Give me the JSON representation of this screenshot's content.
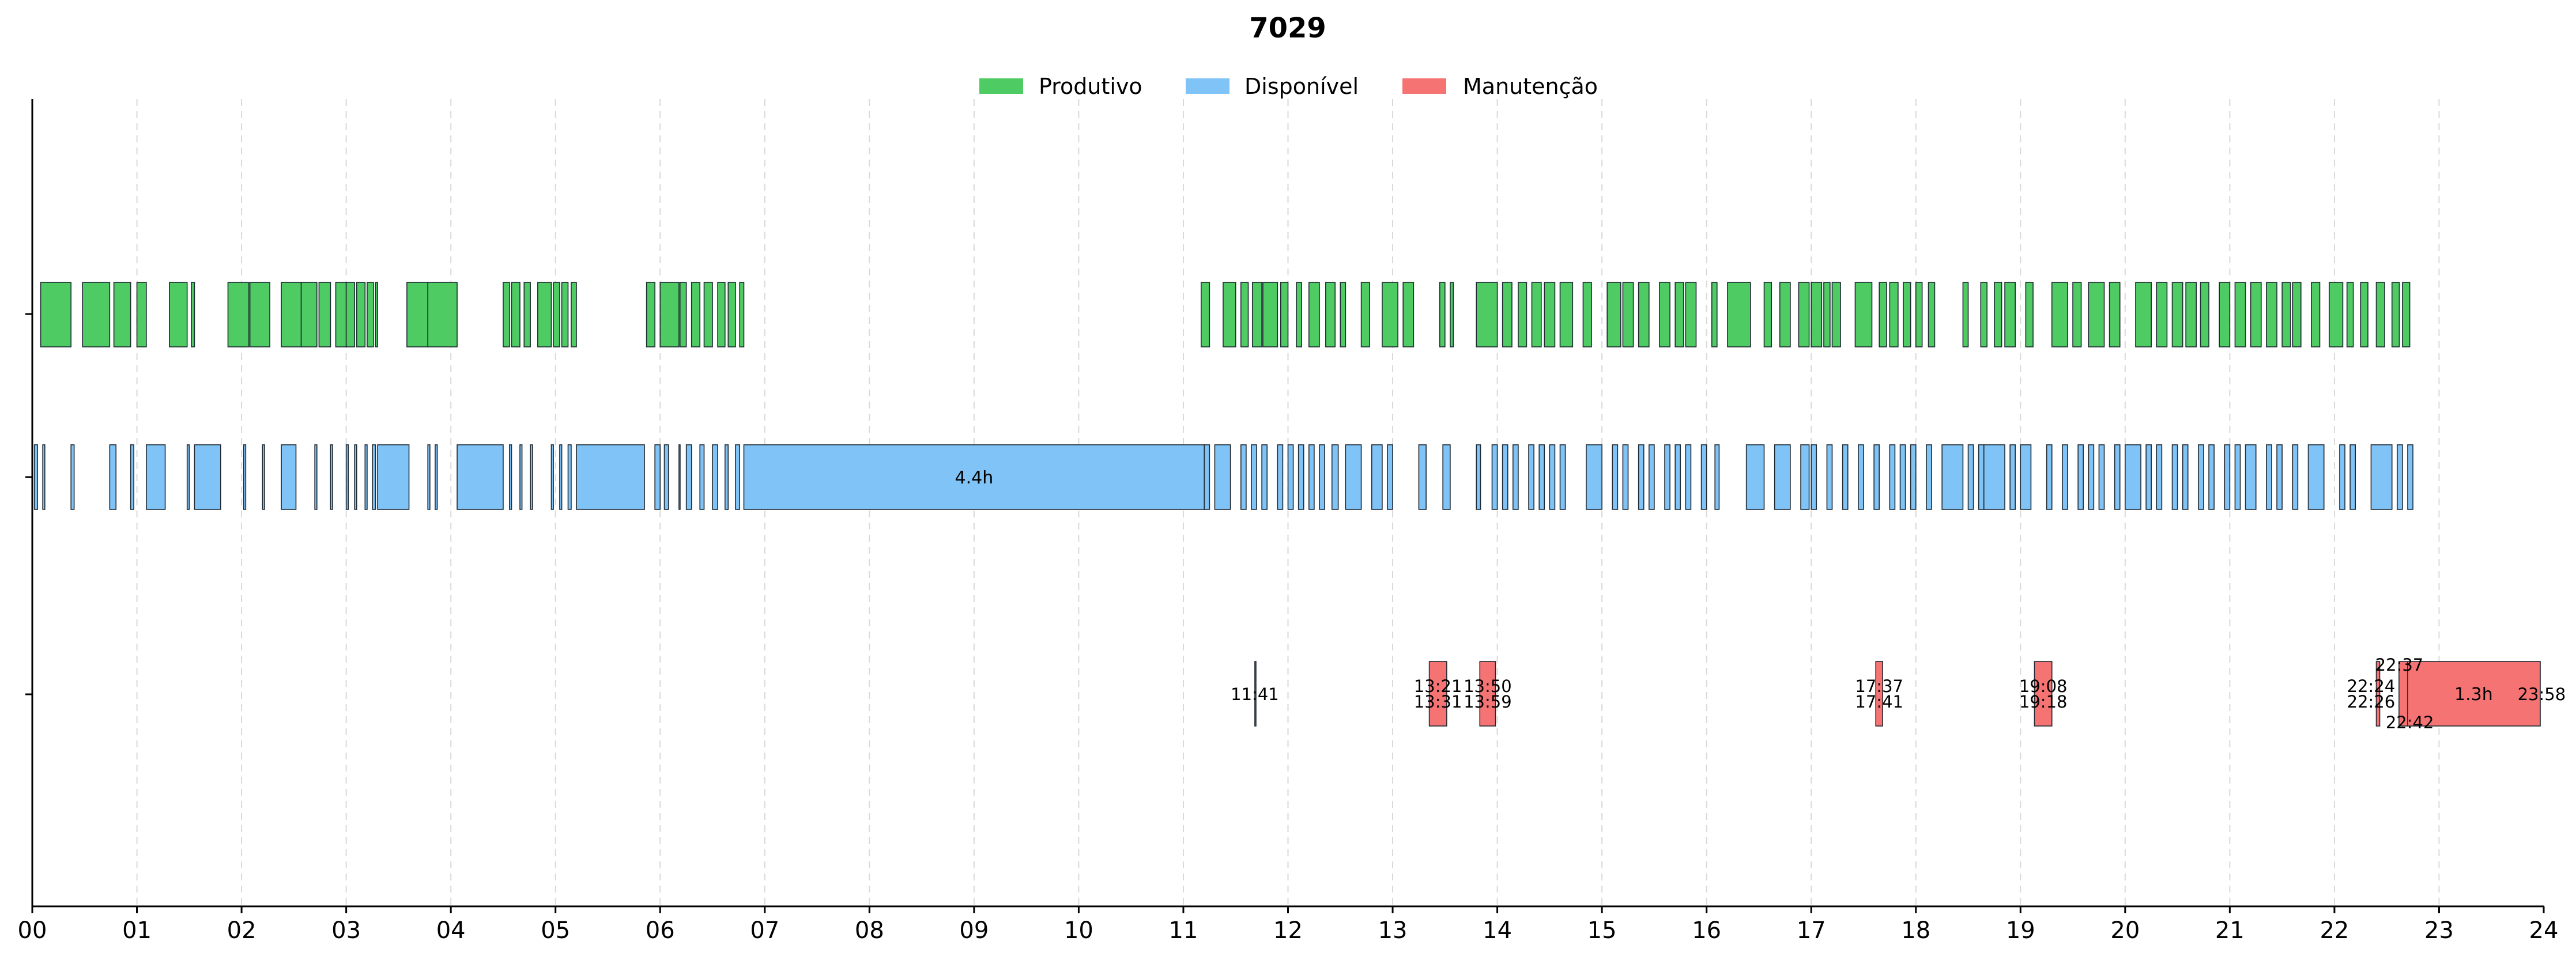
{
  "chart_data": {
    "type": "timeline",
    "title": "7029",
    "xlim": [
      0,
      24
    ],
    "x_tick_labels": [
      "00",
      "01",
      "02",
      "03",
      "04",
      "05",
      "06",
      "07",
      "08",
      "09",
      "10",
      "11",
      "12",
      "13",
      "14",
      "15",
      "16",
      "17",
      "18",
      "19",
      "20",
      "21",
      "22",
      "23",
      "24"
    ],
    "grid": "vertical dashed",
    "legend": {
      "placement": "top-center",
      "entries": [
        {
          "label": "Produtivo",
          "color": "#4ecb63"
        },
        {
          "label": "Disponível",
          "color": "#7fc3f7"
        },
        {
          "label": "Manutenção",
          "color": "#f57373"
        }
      ]
    },
    "series": [
      {
        "name": "Produtivo",
        "color": "#4ecb63",
        "intervals": [
          [
            0.08,
            0.37
          ],
          [
            0.48,
            0.74
          ],
          [
            0.78,
            0.94
          ],
          [
            1.0,
            1.09
          ],
          [
            1.31,
            1.48
          ],
          [
            1.52,
            1.55
          ],
          [
            1.87,
            2.07
          ],
          [
            2.08,
            2.27
          ],
          [
            2.38,
            2.57
          ],
          [
            2.57,
            2.72
          ],
          [
            2.74,
            2.85
          ],
          [
            2.9,
            3.0
          ],
          [
            3.0,
            3.08
          ],
          [
            3.1,
            3.18
          ],
          [
            3.2,
            3.26
          ],
          [
            3.28,
            3.3
          ],
          [
            3.58,
            3.78
          ],
          [
            3.78,
            4.06
          ],
          [
            4.5,
            4.56
          ],
          [
            4.58,
            4.66
          ],
          [
            4.7,
            4.76
          ],
          [
            4.83,
            4.96
          ],
          [
            4.98,
            5.04
          ],
          [
            5.06,
            5.12
          ],
          [
            5.15,
            5.2
          ],
          [
            5.87,
            5.95
          ],
          [
            6.0,
            6.18
          ],
          [
            6.19,
            6.25
          ],
          [
            6.3,
            6.38
          ],
          [
            6.42,
            6.5
          ],
          [
            6.55,
            6.62
          ],
          [
            6.65,
            6.72
          ],
          [
            6.76,
            6.8
          ],
          [
            11.17,
            11.25
          ],
          [
            11.38,
            11.5
          ],
          [
            11.55,
            11.62
          ],
          [
            11.66,
            11.75
          ],
          [
            11.76,
            11.9
          ],
          [
            11.93,
            12.0
          ],
          [
            12.08,
            12.13
          ],
          [
            12.2,
            12.3
          ],
          [
            12.36,
            12.45
          ],
          [
            12.5,
            12.55
          ],
          [
            12.7,
            12.78
          ],
          [
            12.9,
            13.05
          ],
          [
            13.1,
            13.2
          ],
          [
            13.45,
            13.5
          ],
          [
            13.55,
            13.58
          ],
          [
            13.8,
            14.0
          ],
          [
            14.05,
            14.14
          ],
          [
            14.2,
            14.28
          ],
          [
            14.33,
            14.42
          ],
          [
            14.45,
            14.55
          ],
          [
            14.6,
            14.72
          ],
          [
            14.82,
            14.9
          ],
          [
            15.05,
            15.18
          ],
          [
            15.2,
            15.3
          ],
          [
            15.35,
            15.45
          ],
          [
            15.55,
            15.65
          ],
          [
            15.7,
            15.78
          ],
          [
            15.8,
            15.9
          ],
          [
            16.05,
            16.1
          ],
          [
            16.2,
            16.42
          ],
          [
            16.55,
            16.62
          ],
          [
            16.7,
            16.8
          ],
          [
            16.88,
            16.98
          ],
          [
            17.0,
            17.1
          ],
          [
            17.12,
            17.18
          ],
          [
            17.2,
            17.28
          ],
          [
            17.42,
            17.58
          ],
          [
            17.65,
            17.72
          ],
          [
            17.75,
            17.83
          ],
          [
            17.88,
            17.95
          ],
          [
            18.0,
            18.06
          ],
          [
            18.12,
            18.18
          ],
          [
            18.45,
            18.5
          ],
          [
            18.62,
            18.68
          ],
          [
            18.75,
            18.82
          ],
          [
            18.85,
            18.95
          ],
          [
            19.05,
            19.12
          ],
          [
            19.3,
            19.45
          ],
          [
            19.5,
            19.58
          ],
          [
            19.65,
            19.8
          ],
          [
            19.85,
            19.95
          ],
          [
            20.1,
            20.25
          ],
          [
            20.3,
            20.4
          ],
          [
            20.45,
            20.55
          ],
          [
            20.58,
            20.68
          ],
          [
            20.72,
            20.8
          ],
          [
            20.9,
            21.0
          ],
          [
            21.05,
            21.15
          ],
          [
            21.2,
            21.3
          ],
          [
            21.35,
            21.45
          ],
          [
            21.5,
            21.58
          ],
          [
            21.6,
            21.68
          ],
          [
            21.78,
            21.86
          ],
          [
            21.95,
            22.08
          ],
          [
            22.12,
            22.18
          ],
          [
            22.25,
            22.32
          ],
          [
            22.4,
            22.48
          ],
          [
            22.55,
            22.62
          ],
          [
            22.65,
            22.72
          ]
        ]
      },
      {
        "name": "Disponível",
        "color": "#7fc3f7",
        "intervals": [
          [
            0.02,
            0.05
          ],
          [
            0.1,
            0.12
          ],
          [
            0.37,
            0.4
          ],
          [
            0.74,
            0.8
          ],
          [
            0.94,
            0.97
          ],
          [
            1.09,
            1.27
          ],
          [
            1.48,
            1.5
          ],
          [
            1.55,
            1.8
          ],
          [
            2.02,
            2.04
          ],
          [
            2.2,
            2.22
          ],
          [
            2.38,
            2.52
          ],
          [
            2.7,
            2.72
          ],
          [
            2.85,
            2.87
          ],
          [
            3.0,
            3.02
          ],
          [
            3.08,
            3.1
          ],
          [
            3.18,
            3.2
          ],
          [
            3.25,
            3.28
          ],
          [
            3.3,
            3.6
          ],
          [
            3.78,
            3.8
          ],
          [
            3.85,
            3.87
          ],
          [
            4.06,
            4.5
          ],
          [
            4.56,
            4.58
          ],
          [
            4.66,
            4.68
          ],
          [
            4.76,
            4.78
          ],
          [
            4.96,
            4.98
          ],
          [
            5.04,
            5.06
          ],
          [
            5.12,
            5.15
          ],
          [
            5.2,
            5.85
          ],
          [
            5.95,
            6.0
          ],
          [
            6.04,
            6.08
          ],
          [
            6.18,
            6.19
          ],
          [
            6.25,
            6.3
          ],
          [
            6.38,
            6.42
          ],
          [
            6.5,
            6.55
          ],
          [
            6.62,
            6.65
          ],
          [
            6.72,
            6.76
          ],
          [
            6.8,
            11.2
          ],
          [
            11.2,
            11.25
          ],
          [
            11.3,
            11.45
          ],
          [
            11.55,
            11.6
          ],
          [
            11.65,
            11.7
          ],
          [
            11.75,
            11.8
          ],
          [
            11.9,
            11.95
          ],
          [
            12.0,
            12.05
          ],
          [
            12.1,
            12.15
          ],
          [
            12.2,
            12.25
          ],
          [
            12.3,
            12.35
          ],
          [
            12.42,
            12.48
          ],
          [
            12.55,
            12.7
          ],
          [
            12.8,
            12.9
          ],
          [
            12.95,
            13.0
          ],
          [
            13.25,
            13.32
          ],
          [
            13.48,
            13.55
          ],
          [
            13.8,
            13.84
          ],
          [
            13.95,
            14.0
          ],
          [
            14.05,
            14.1
          ],
          [
            14.15,
            14.2
          ],
          [
            14.3,
            14.35
          ],
          [
            14.4,
            14.45
          ],
          [
            14.5,
            14.55
          ],
          [
            14.6,
            14.65
          ],
          [
            14.85,
            15.0
          ],
          [
            15.1,
            15.15
          ],
          [
            15.2,
            15.25
          ],
          [
            15.35,
            15.4
          ],
          [
            15.45,
            15.5
          ],
          [
            15.6,
            15.65
          ],
          [
            15.7,
            15.75
          ],
          [
            15.8,
            15.85
          ],
          [
            15.95,
            16.0
          ],
          [
            16.08,
            16.12
          ],
          [
            16.38,
            16.55
          ],
          [
            16.65,
            16.8
          ],
          [
            16.9,
            16.98
          ],
          [
            17.0,
            17.05
          ],
          [
            17.15,
            17.2
          ],
          [
            17.3,
            17.35
          ],
          [
            17.45,
            17.5
          ],
          [
            17.6,
            17.65
          ],
          [
            17.75,
            17.8
          ],
          [
            17.85,
            17.9
          ],
          [
            17.95,
            18.0
          ],
          [
            18.1,
            18.15
          ],
          [
            18.25,
            18.45
          ],
          [
            18.5,
            18.55
          ],
          [
            18.6,
            18.65
          ],
          [
            18.65,
            18.85
          ],
          [
            18.9,
            18.95
          ],
          [
            19.0,
            19.1
          ],
          [
            19.25,
            19.3
          ],
          [
            19.4,
            19.45
          ],
          [
            19.55,
            19.6
          ],
          [
            19.65,
            19.7
          ],
          [
            19.75,
            19.8
          ],
          [
            19.9,
            19.95
          ],
          [
            20.0,
            20.15
          ],
          [
            20.2,
            20.25
          ],
          [
            20.3,
            20.35
          ],
          [
            20.45,
            20.5
          ],
          [
            20.55,
            20.6
          ],
          [
            20.7,
            20.75
          ],
          [
            20.8,
            20.85
          ],
          [
            20.95,
            21.0
          ],
          [
            21.05,
            21.1
          ],
          [
            21.15,
            21.25
          ],
          [
            21.35,
            21.4
          ],
          [
            21.45,
            21.5
          ],
          [
            21.6,
            21.65
          ],
          [
            21.75,
            21.9
          ],
          [
            22.05,
            22.1
          ],
          [
            22.15,
            22.2
          ],
          [
            22.35,
            22.55
          ],
          [
            22.6,
            22.65
          ],
          [
            22.7,
            22.75
          ]
        ]
      },
      {
        "name": "Manutenção",
        "color": "#f57373",
        "intervals": [
          [
            11.683,
            11.693
          ],
          [
            13.35,
            13.517
          ],
          [
            13.833,
            13.983
          ],
          [
            17.617,
            17.683
          ],
          [
            19.133,
            19.3
          ],
          [
            22.4,
            22.433
          ],
          [
            22.617,
            22.7
          ],
          [
            22.7,
            23.967
          ]
        ]
      }
    ],
    "labels": [
      {
        "text": "11:41",
        "x": 11.683,
        "series": "Manutenção",
        "position": "middle"
      },
      {
        "text": "13:21",
        "x": 13.433,
        "series": "Manutenção",
        "position": "upper"
      },
      {
        "text": "13:31",
        "x": 13.433,
        "series": "Manutenção",
        "position": "lower"
      },
      {
        "text": "13:50",
        "x": 13.908,
        "series": "Manutenção",
        "position": "upper"
      },
      {
        "text": "13:59",
        "x": 13.908,
        "series": "Manutenção",
        "position": "lower"
      },
      {
        "text": "17:37",
        "x": 17.65,
        "series": "Manutenção",
        "position": "upper"
      },
      {
        "text": "17:41",
        "x": 17.65,
        "series": "Manutenção",
        "position": "lower"
      },
      {
        "text": "19:08",
        "x": 19.217,
        "series": "Manutenção",
        "position": "upper"
      },
      {
        "text": "19:18",
        "x": 19.217,
        "series": "Manutenção",
        "position": "lower"
      },
      {
        "text": "22:24",
        "x": 22.35,
        "series": "Manutenção",
        "position": "upper"
      },
      {
        "text": "22:26",
        "x": 22.35,
        "series": "Manutenção",
        "position": "lower"
      },
      {
        "text": "22:37",
        "x": 22.62,
        "series": "Manutenção",
        "position": "above"
      },
      {
        "text": "22:42",
        "x": 22.72,
        "series": "Manutenção",
        "position": "below"
      },
      {
        "text": "23:58",
        "x": 23.98,
        "series": "Manutenção",
        "position": "right"
      },
      {
        "text": "4.4h",
        "x": 9.0,
        "series": "Disponível",
        "position": "center"
      },
      {
        "text": "1.3h",
        "x": 23.33,
        "series": "Manutenção",
        "position": "center"
      }
    ]
  }
}
